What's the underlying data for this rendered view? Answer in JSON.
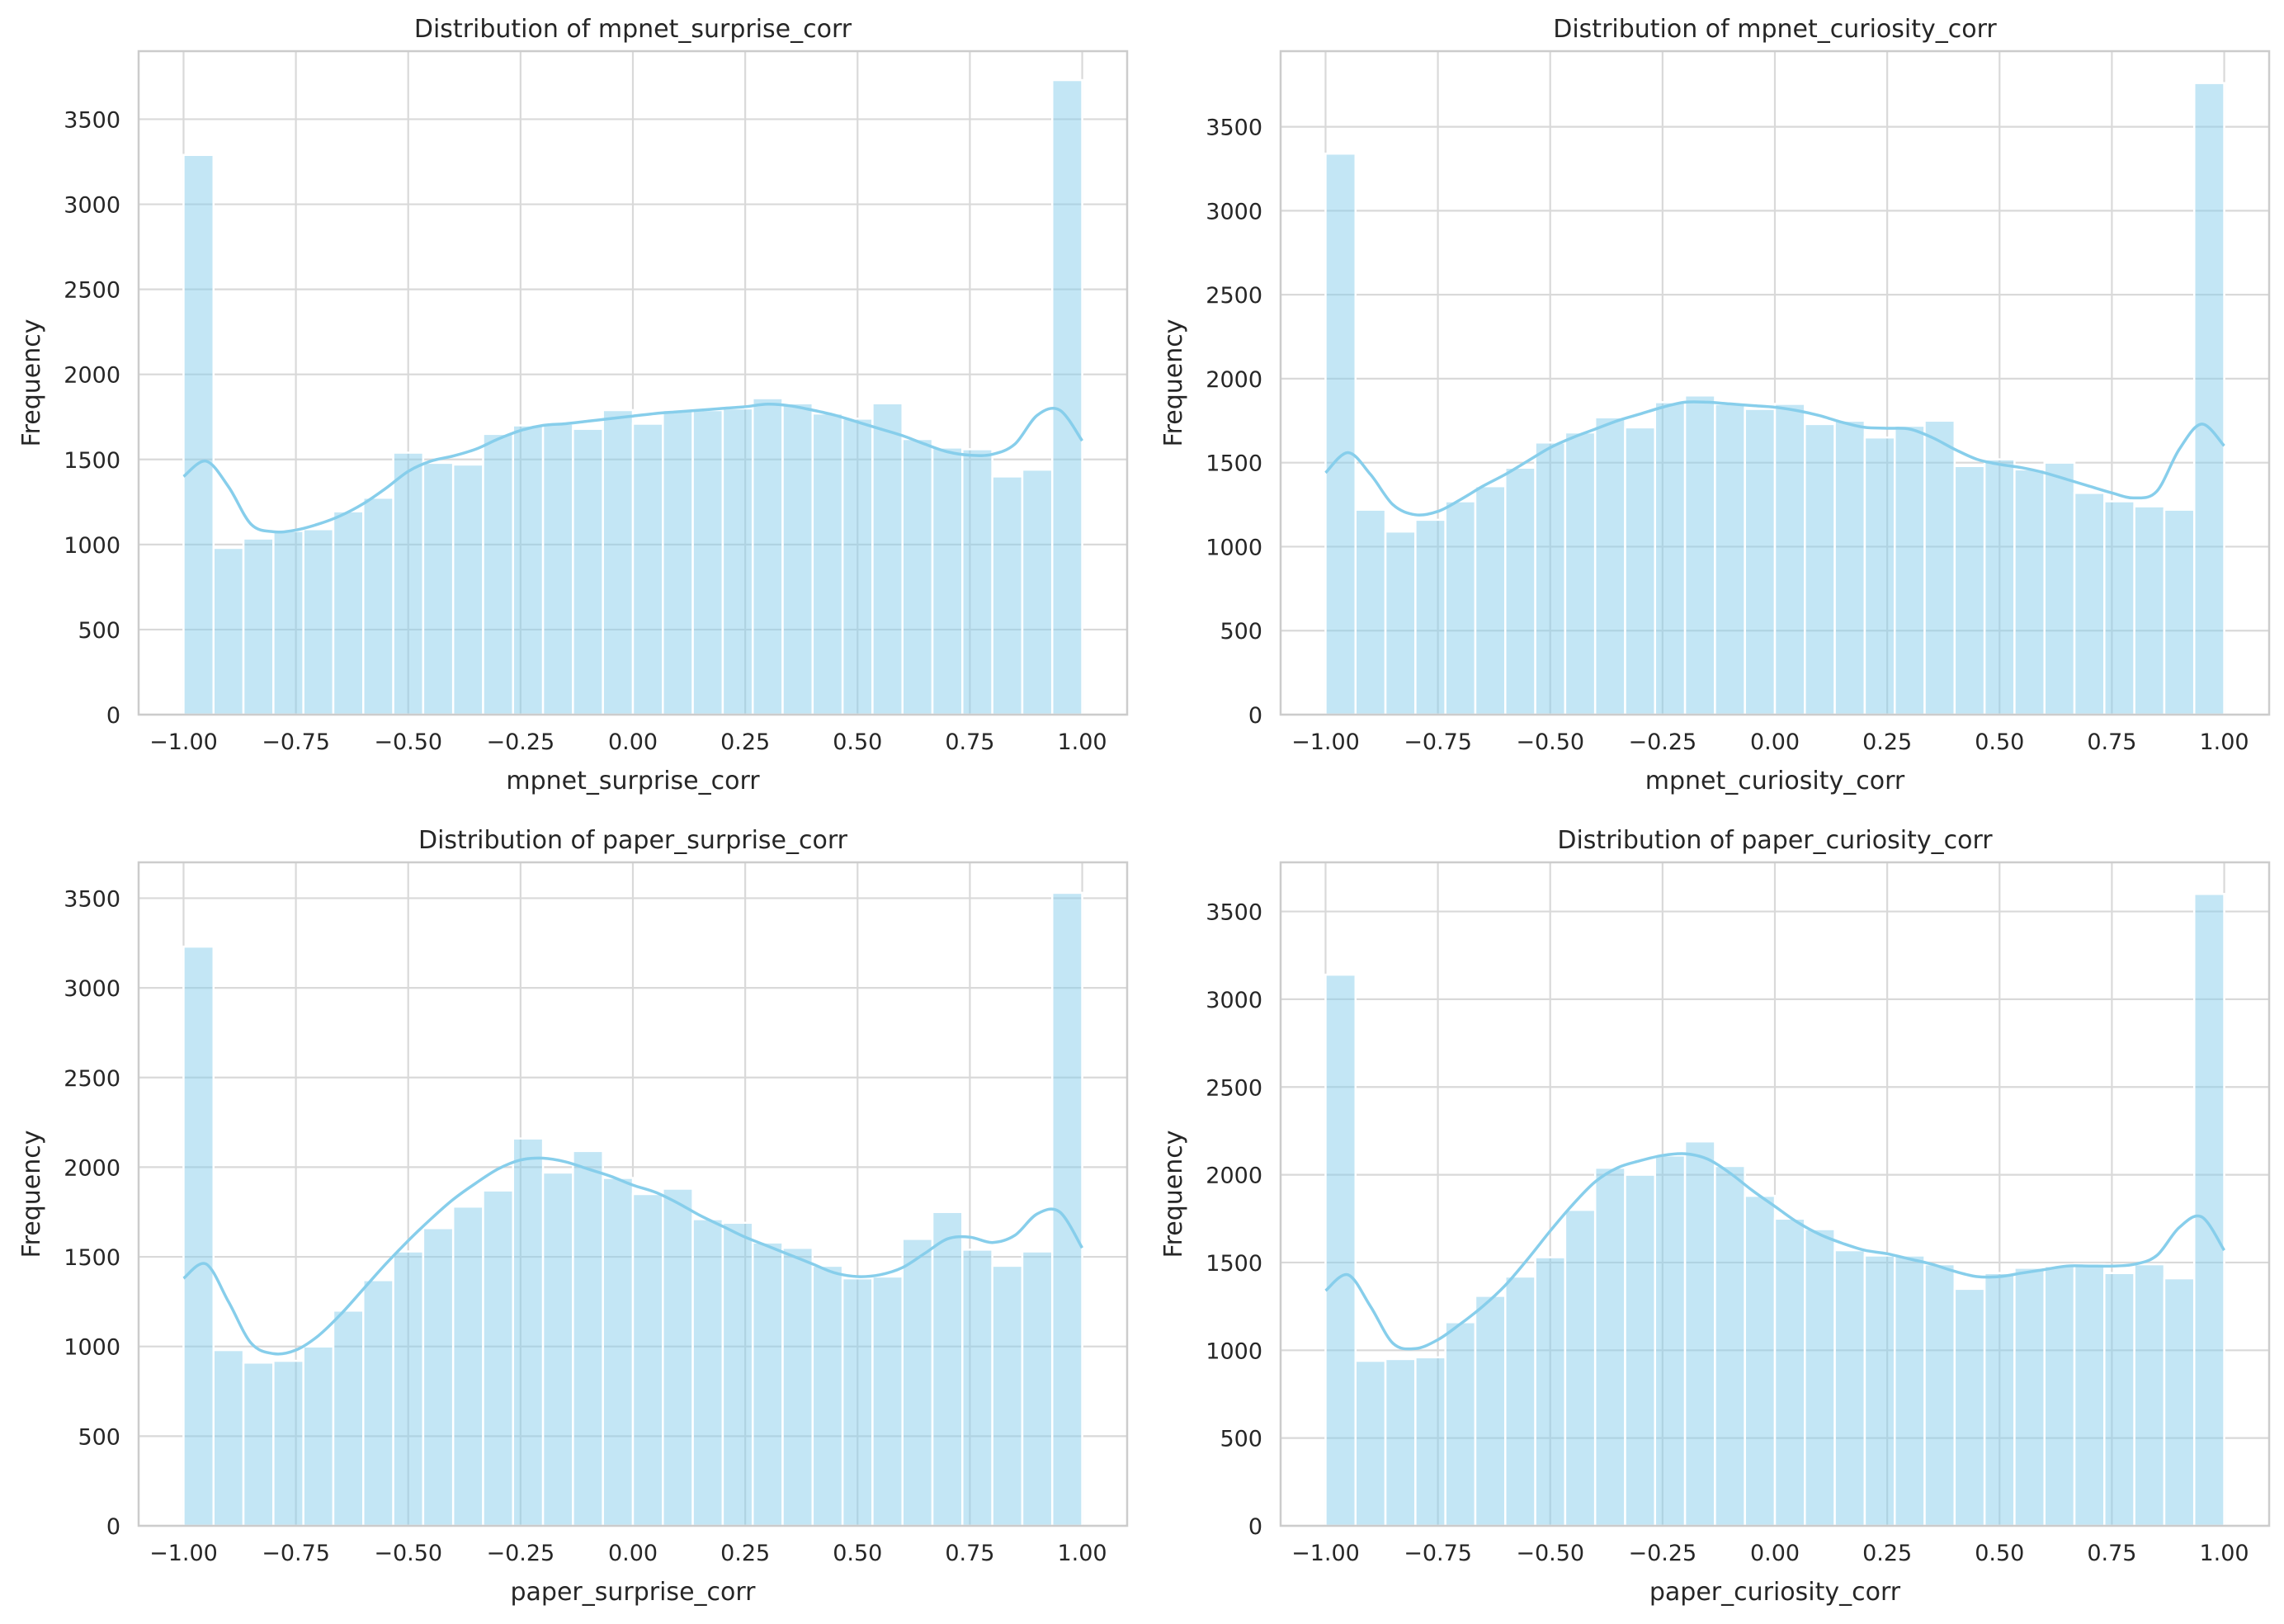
{
  "figure": {
    "style": "seaborn whitegrid histogram with KDE overlay",
    "bar_color": "#87CEEB",
    "kde_color": "#87CEEB",
    "grid_color": "#d9d9d9"
  },
  "chart_data": [
    {
      "type": "bar",
      "title": "Distribution of mpnet_surprise_corr",
      "xlabel": "mpnet_surprise_corr",
      "ylabel": "Frequency",
      "xlim": [
        -1.1,
        1.1
      ],
      "ylim": [
        0,
        3900
      ],
      "xticks": [
        "-1.00",
        "-0.75",
        "-0.50",
        "-0.25",
        "0.00",
        "0.25",
        "0.50",
        "0.75",
        "1.00"
      ],
      "xtick_values": [
        -1.0,
        -0.75,
        -0.5,
        -0.25,
        0.0,
        0.25,
        0.5,
        0.75,
        1.0
      ],
      "yticks": [
        "0",
        "500",
        "1000",
        "1500",
        "2000",
        "2500",
        "3000",
        "3500"
      ],
      "ytick_values": [
        0,
        500,
        1000,
        1500,
        2000,
        2500,
        3000,
        3500
      ],
      "bin_edges": [
        -1.0,
        -0.9333,
        -0.8667,
        -0.8,
        -0.7333,
        -0.6667,
        -0.6,
        -0.5333,
        -0.4667,
        -0.4,
        -0.3333,
        -0.2667,
        -0.2,
        -0.1333,
        -0.0667,
        0.0,
        0.0667,
        0.1333,
        0.2,
        0.2667,
        0.3333,
        0.4,
        0.4667,
        0.5333,
        0.6,
        0.6667,
        0.7333,
        0.8,
        0.8667,
        0.9333,
        1.0
      ],
      "counts": [
        3290,
        980,
        1035,
        1080,
        1090,
        1195,
        1275,
        1540,
        1480,
        1470,
        1650,
        1700,
        1710,
        1680,
        1790,
        1710,
        1790,
        1790,
        1800,
        1860,
        1830,
        1770,
        1740,
        1830,
        1620,
        1570,
        1560,
        1400,
        1440,
        3730
      ],
      "kde": {
        "x": [
          -1.0,
          -0.95,
          -0.9,
          -0.85,
          -0.8,
          -0.75,
          -0.7,
          -0.65,
          -0.6,
          -0.55,
          -0.5,
          -0.45,
          -0.4,
          -0.35,
          -0.3,
          -0.25,
          -0.2,
          -0.15,
          -0.1,
          -0.05,
          0.0,
          0.05,
          0.1,
          0.15,
          0.2,
          0.25,
          0.3,
          0.35,
          0.4,
          0.45,
          0.5,
          0.55,
          0.6,
          0.65,
          0.7,
          0.75,
          0.8,
          0.85,
          0.9,
          0.95,
          1.0
        ],
        "y": [
          1400,
          1490,
          1340,
          1120,
          1075,
          1085,
          1120,
          1170,
          1240,
          1330,
          1430,
          1490,
          1520,
          1560,
          1620,
          1670,
          1700,
          1710,
          1725,
          1740,
          1755,
          1770,
          1780,
          1790,
          1800,
          1810,
          1825,
          1815,
          1790,
          1760,
          1720,
          1680,
          1640,
          1590,
          1545,
          1525,
          1530,
          1590,
          1760,
          1790,
          1610
        ]
      }
    },
    {
      "type": "bar",
      "title": "Distribution of mpnet_curiosity_corr",
      "xlabel": "mpnet_curiosity_corr",
      "ylabel": "Frequency",
      "xlim": [
        -1.1,
        1.1
      ],
      "ylim": [
        0,
        3950
      ],
      "xticks": [
        "-1.00",
        "-0.75",
        "-0.50",
        "-0.25",
        "0.00",
        "0.25",
        "0.50",
        "0.75",
        "1.00"
      ],
      "xtick_values": [
        -1.0,
        -0.75,
        -0.5,
        -0.25,
        0.0,
        0.25,
        0.5,
        0.75,
        1.0
      ],
      "yticks": [
        "0",
        "500",
        "1000",
        "1500",
        "2000",
        "2500",
        "3000",
        "3500"
      ],
      "ytick_values": [
        0,
        500,
        1000,
        1500,
        2000,
        2500,
        3000,
        3500
      ],
      "bin_edges": [
        -1.0,
        -0.9333,
        -0.8667,
        -0.8,
        -0.7333,
        -0.6667,
        -0.6,
        -0.5333,
        -0.4667,
        -0.4,
        -0.3333,
        -0.2667,
        -0.2,
        -0.1333,
        -0.0667,
        0.0,
        0.0667,
        0.1333,
        0.2,
        0.2667,
        0.3333,
        0.4,
        0.4667,
        0.5333,
        0.6,
        0.6667,
        0.7333,
        0.8,
        0.8667,
        0.9333,
        1.0
      ],
      "counts": [
        3340,
        1220,
        1090,
        1160,
        1270,
        1360,
        1470,
        1620,
        1680,
        1770,
        1710,
        1860,
        1900,
        1850,
        1820,
        1850,
        1730,
        1750,
        1650,
        1720,
        1750,
        1480,
        1520,
        1460,
        1500,
        1320,
        1270,
        1240,
        1220,
        3760
      ],
      "kde": {
        "x": [
          -1.0,
          -0.95,
          -0.9,
          -0.85,
          -0.8,
          -0.75,
          -0.7,
          -0.65,
          -0.6,
          -0.55,
          -0.5,
          -0.45,
          -0.4,
          -0.35,
          -0.3,
          -0.25,
          -0.2,
          -0.15,
          -0.1,
          -0.05,
          0.0,
          0.05,
          0.1,
          0.15,
          0.2,
          0.25,
          0.3,
          0.35,
          0.4,
          0.45,
          0.5,
          0.55,
          0.6,
          0.65,
          0.7,
          0.75,
          0.8,
          0.85,
          0.9,
          0.95,
          1.0
        ],
        "y": [
          1440,
          1560,
          1430,
          1250,
          1190,
          1210,
          1280,
          1360,
          1430,
          1510,
          1590,
          1650,
          1700,
          1750,
          1790,
          1830,
          1860,
          1860,
          1850,
          1840,
          1830,
          1810,
          1780,
          1740,
          1710,
          1705,
          1700,
          1650,
          1580,
          1520,
          1490,
          1470,
          1440,
          1400,
          1360,
          1320,
          1290,
          1330,
          1580,
          1730,
          1600
        ]
      }
    },
    {
      "type": "bar",
      "title": "Distribution of paper_surprise_corr",
      "xlabel": "paper_surprise_corr",
      "ylabel": "Frequency",
      "xlim": [
        -1.1,
        1.1
      ],
      "ylim": [
        0,
        3700
      ],
      "xticks": [
        "-1.00",
        "-0.75",
        "-0.50",
        "-0.25",
        "0.00",
        "0.25",
        "0.50",
        "0.75",
        "1.00"
      ],
      "xtick_values": [
        -1.0,
        -0.75,
        -0.5,
        -0.25,
        0.0,
        0.25,
        0.5,
        0.75,
        1.0
      ],
      "yticks": [
        "0",
        "500",
        "1000",
        "1500",
        "2000",
        "2500",
        "3000",
        "3500"
      ],
      "ytick_values": [
        0,
        500,
        1000,
        1500,
        2000,
        2500,
        3000,
        3500
      ],
      "bin_edges": [
        -1.0,
        -0.9333,
        -0.8667,
        -0.8,
        -0.7333,
        -0.6667,
        -0.6,
        -0.5333,
        -0.4667,
        -0.4,
        -0.3333,
        -0.2667,
        -0.2,
        -0.1333,
        -0.0667,
        0.0,
        0.0667,
        0.1333,
        0.2,
        0.2667,
        0.3333,
        0.4,
        0.4667,
        0.5333,
        0.6,
        0.6667,
        0.7333,
        0.8,
        0.8667,
        0.9333,
        1.0
      ],
      "counts": [
        3230,
        980,
        910,
        920,
        1000,
        1200,
        1370,
        1530,
        1660,
        1780,
        1870,
        2160,
        1970,
        2090,
        1940,
        1850,
        1880,
        1710,
        1690,
        1580,
        1550,
        1450,
        1380,
        1390,
        1600,
        1750,
        1540,
        1450,
        1530,
        3530
      ],
      "kde": {
        "x": [
          -1.0,
          -0.95,
          -0.9,
          -0.85,
          -0.8,
          -0.75,
          -0.7,
          -0.65,
          -0.6,
          -0.55,
          -0.5,
          -0.45,
          -0.4,
          -0.35,
          -0.3,
          -0.25,
          -0.2,
          -0.15,
          -0.1,
          -0.05,
          0.0,
          0.05,
          0.1,
          0.15,
          0.2,
          0.25,
          0.3,
          0.35,
          0.4,
          0.45,
          0.5,
          0.55,
          0.6,
          0.65,
          0.7,
          0.75,
          0.8,
          0.85,
          0.9,
          0.95,
          1.0
        ],
        "y": [
          1380,
          1460,
          1250,
          1020,
          960,
          980,
          1060,
          1180,
          1320,
          1460,
          1590,
          1710,
          1820,
          1910,
          1990,
          2040,
          2050,
          2030,
          1990,
          1950,
          1900,
          1860,
          1800,
          1730,
          1670,
          1610,
          1560,
          1510,
          1460,
          1410,
          1390,
          1400,
          1440,
          1520,
          1600,
          1610,
          1580,
          1620,
          1740,
          1750,
          1550
        ]
      }
    },
    {
      "type": "bar",
      "title": "Distribution of paper_curiosity_corr",
      "xlabel": "paper_curiosity_corr",
      "ylabel": "Frequency",
      "xlim": [
        -1.1,
        1.1
      ],
      "ylim": [
        0,
        3780
      ],
      "xticks": [
        "-1.00",
        "-0.75",
        "-0.50",
        "-0.25",
        "0.00",
        "0.25",
        "0.50",
        "0.75",
        "1.00"
      ],
      "xtick_values": [
        -1.0,
        -0.75,
        -0.5,
        -0.25,
        0.0,
        0.25,
        0.5,
        0.75,
        1.0
      ],
      "yticks": [
        "0",
        "500",
        "1000",
        "1500",
        "2000",
        "2500",
        "3000",
        "3500"
      ],
      "ytick_values": [
        0,
        500,
        1000,
        1500,
        2000,
        2500,
        3000,
        3500
      ],
      "bin_edges": [
        -1.0,
        -0.9333,
        -0.8667,
        -0.8,
        -0.7333,
        -0.6667,
        -0.6,
        -0.5333,
        -0.4667,
        -0.4,
        -0.3333,
        -0.2667,
        -0.2,
        -0.1333,
        -0.0667,
        0.0,
        0.0667,
        0.1333,
        0.2,
        0.2667,
        0.3333,
        0.4,
        0.4667,
        0.5333,
        0.6,
        0.6667,
        0.7333,
        0.8,
        0.8667,
        0.9333,
        1.0
      ],
      "counts": [
        3140,
        940,
        950,
        960,
        1160,
        1310,
        1420,
        1530,
        1800,
        2040,
        2000,
        2110,
        2190,
        2050,
        1880,
        1750,
        1690,
        1570,
        1540,
        1540,
        1490,
        1350,
        1440,
        1470,
        1480,
        1490,
        1440,
        1490,
        1410,
        3600
      ],
      "kde": {
        "x": [
          -1.0,
          -0.95,
          -0.9,
          -0.85,
          -0.8,
          -0.75,
          -0.7,
          -0.65,
          -0.6,
          -0.55,
          -0.5,
          -0.45,
          -0.4,
          -0.35,
          -0.3,
          -0.25,
          -0.2,
          -0.15,
          -0.1,
          -0.05,
          0.0,
          0.05,
          0.1,
          0.15,
          0.2,
          0.25,
          0.3,
          0.35,
          0.4,
          0.45,
          0.5,
          0.55,
          0.6,
          0.65,
          0.7,
          0.75,
          0.8,
          0.85,
          0.9,
          0.95,
          1.0
        ],
        "y": [
          1340,
          1430,
          1250,
          1040,
          1010,
          1060,
          1150,
          1250,
          1370,
          1520,
          1680,
          1830,
          1960,
          2040,
          2080,
          2110,
          2120,
          2090,
          2010,
          1910,
          1820,
          1730,
          1660,
          1610,
          1570,
          1550,
          1520,
          1490,
          1450,
          1420,
          1420,
          1440,
          1460,
          1480,
          1480,
          1480,
          1490,
          1540,
          1700,
          1760,
          1570
        ]
      }
    }
  ]
}
